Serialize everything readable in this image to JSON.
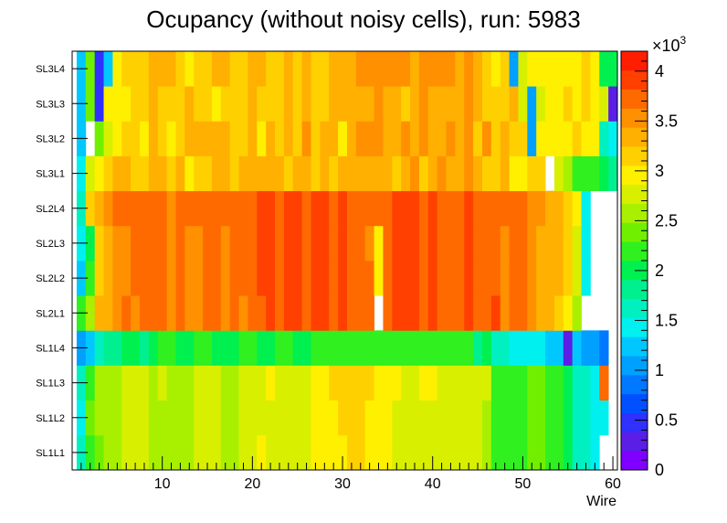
{
  "chart_data": {
    "type": "heatmap",
    "title": "Ocupancy (without noisy cells), run: 5983",
    "xlabel": "Wire",
    "ylabel": "",
    "xlim": [
      0,
      60.5
    ],
    "x_ticks": [
      10,
      20,
      30,
      40,
      50,
      60
    ],
    "y_categories": [
      "SL1L1",
      "SL1L2",
      "SL1L3",
      "SL1L4",
      "SL2L1",
      "SL2L2",
      "SL2L3",
      "SL2L4",
      "SL3L1",
      "SL3L2",
      "SL3L3",
      "SL3L4"
    ],
    "zlim": [
      0,
      4200
    ],
    "z_ticks": [
      0,
      0.5,
      1,
      1.5,
      2,
      2.5,
      3,
      3.5,
      4
    ],
    "z_exponent_label": "×10",
    "z_exponent_power": "3",
    "first_wire": 1,
    "rows": {
      "SL1L1": [
        1600,
        2200,
        2400,
        2500,
        2600,
        2700,
        2800,
        2700,
        2600,
        2650,
        2550,
        2500,
        2600,
        2700,
        2800,
        2700,
        2600,
        2650,
        2700,
        2800,
        2900,
        2850,
        2800,
        2750,
        2700,
        2800,
        2900,
        2900,
        2950,
        3000,
        3100,
        3100,
        3050,
        3000,
        2900,
        2850,
        2800,
        2800,
        2850,
        2850,
        2800,
        2800,
        2750,
        2750,
        2700,
        2650,
        2200,
        2200,
        2200,
        2200,
        2300,
        2300,
        2250,
        2100,
        2000,
        1700,
        1600,
        1500,
        0,
        null
      ],
      "SL1L2": [
        1500,
        2300,
        2500,
        2500,
        2600,
        2700,
        2800,
        2750,
        2600,
        2650,
        2550,
        2550,
        2600,
        2700,
        2800,
        2700,
        2650,
        2650,
        2700,
        2800,
        2850,
        2850,
        2800,
        2750,
        2700,
        2800,
        2950,
        2950,
        3000,
        3100,
        3100,
        3100,
        3050,
        3000,
        2900,
        2850,
        2800,
        2800,
        2850,
        2850,
        2800,
        2800,
        2750,
        2750,
        2700,
        2650,
        2200,
        2200,
        2200,
        2200,
        2300,
        2300,
        2250,
        2100,
        2000,
        1700,
        1600,
        1500,
        1500,
        null
      ],
      "SL1L3": [
        1600,
        2250,
        2500,
        2550,
        2600,
        2700,
        2800,
        2800,
        2650,
        2700,
        2600,
        2550,
        2650,
        2750,
        2850,
        2750,
        2650,
        2650,
        2700,
        2800,
        2850,
        2900,
        2800,
        2750,
        2750,
        2850,
        3000,
        3000,
        3100,
        3200,
        3200,
        3150,
        3100,
        3050,
        2950,
        2900,
        2850,
        2850,
        2900,
        2900,
        2850,
        2850,
        2800,
        2800,
        2750,
        2700,
        2250,
        2250,
        2200,
        2200,
        2300,
        2300,
        2250,
        2100,
        2000,
        1700,
        1600,
        1500,
        3800,
        null
      ],
      "SL1L4": [
        1000,
        1300,
        1700,
        1800,
        1900,
        2000,
        2000,
        1900,
        2000,
        2100,
        2100,
        2000,
        2000,
        2100,
        2100,
        2000,
        2000,
        2000,
        2100,
        2100,
        2000,
        2000,
        2100,
        2100,
        2000,
        2000,
        2100,
        2100,
        2100,
        2100,
        2150,
        2150,
        2150,
        2200,
        2200,
        2200,
        2100,
        2200,
        2150,
        2200,
        2200,
        2200,
        2100,
        2100,
        1900,
        2000,
        1700,
        1650,
        1500,
        1500,
        1400,
        1400,
        1300,
        1200,
        300,
        1200,
        1100,
        1100,
        800,
        null
      ],
      "SL2L1": [
        2200,
        2500,
        3300,
        3300,
        3500,
        3700,
        3500,
        3700,
        3700,
        3800,
        3500,
        3800,
        3600,
        3500,
        3800,
        3800,
        3600,
        3800,
        3600,
        3800,
        3800,
        3900,
        3700,
        3900,
        3900,
        3700,
        3900,
        3900,
        3800,
        3900,
        3800,
        3700,
        3800,
        0,
        3800,
        3900,
        3900,
        3900,
        3700,
        3900,
        3800,
        3700,
        3800,
        3900,
        3700,
        3800,
        4000,
        3500,
        3800,
        3700,
        3500,
        3300,
        3300,
        3100,
        2900,
        2600,
        0,
        null,
        null,
        null
      ],
      "SL2L2": [
        1200,
        2100,
        3100,
        3300,
        3500,
        3600,
        3700,
        3700,
        3700,
        3700,
        3600,
        3800,
        3600,
        3600,
        3800,
        3800,
        3600,
        3800,
        3700,
        3800,
        3900,
        3900,
        3700,
        3900,
        3900,
        3700,
        3900,
        3900,
        3800,
        3900,
        3800,
        3700,
        3800,
        3000,
        3800,
        3900,
        3900,
        3900,
        3700,
        3900,
        3800,
        3700,
        3800,
        3900,
        3800,
        3800,
        3800,
        3600,
        3800,
        3700,
        3600,
        3400,
        3400,
        3300,
        3200,
        2700,
        1500,
        null,
        null,
        null
      ],
      "SL2L3": [
        1400,
        2000,
        3100,
        3300,
        3500,
        3600,
        3700,
        3700,
        3700,
        3700,
        3600,
        3800,
        3600,
        3600,
        3800,
        3800,
        3600,
        3800,
        3700,
        3800,
        3900,
        3900,
        3700,
        3900,
        3900,
        3700,
        3900,
        3900,
        3800,
        3900,
        3800,
        3700,
        3500,
        3000,
        3800,
        3900,
        3900,
        3900,
        3700,
        3900,
        3800,
        3700,
        3800,
        3900,
        3800,
        3800,
        3800,
        3600,
        3800,
        3700,
        3600,
        3400,
        3400,
        3300,
        3200,
        2700,
        1500,
        null,
        null,
        null
      ],
      "SL2L4": [
        1700,
        3100,
        3300,
        3500,
        3700,
        3800,
        3800,
        3800,
        3800,
        3800,
        3600,
        3800,
        3700,
        3700,
        3800,
        3800,
        3700,
        3800,
        3700,
        3800,
        3900,
        3900,
        3800,
        3900,
        3900,
        3800,
        3900,
        3900,
        3800,
        3900,
        3800,
        3800,
        3800,
        3800,
        3800,
        3900,
        3900,
        3900,
        3800,
        3900,
        3800,
        3800,
        3800,
        3900,
        3800,
        3800,
        3800,
        3800,
        3800,
        3700,
        3600,
        3500,
        3400,
        3300,
        3100,
        2900,
        1400,
        null,
        null,
        null
      ],
      "SL3L1": [
        1400,
        2700,
        3000,
        3100,
        3300,
        3300,
        3200,
        3100,
        3300,
        3300,
        3200,
        3400,
        3000,
        3100,
        3200,
        3300,
        3400,
        3200,
        3300,
        3400,
        3300,
        3400,
        3300,
        3200,
        3300,
        3400,
        3200,
        3300,
        3100,
        3300,
        3400,
        3400,
        3400,
        3300,
        3300,
        3200,
        3400,
        3500,
        3200,
        3400,
        3500,
        3300,
        3300,
        3500,
        3300,
        3200,
        3200,
        3300,
        3000,
        3000,
        3200,
        3200,
        0,
        2800,
        2500,
        2200,
        2200,
        2100,
        2000,
        1900
      ],
      "SL3L2": [
        1300,
        0,
        2300,
        2700,
        3000,
        3200,
        3100,
        3000,
        3300,
        3200,
        3000,
        3200,
        3300,
        3300,
        3400,
        3400,
        3300,
        3100,
        3200,
        3300,
        3000,
        3300,
        3100,
        3400,
        3200,
        3500,
        3100,
        3400,
        3300,
        3000,
        3400,
        3500,
        3500,
        3500,
        3300,
        3400,
        3500,
        3300,
        3500,
        3400,
        3300,
        3500,
        3300,
        3500,
        3200,
        3500,
        3100,
        3300,
        3100,
        3100,
        1000,
        3000,
        3000,
        2900,
        3000,
        3100,
        3000,
        2900,
        1700,
        1400
      ],
      "SL3L3": [
        1300,
        2400,
        400,
        2900,
        3000,
        3000,
        3100,
        3200,
        3300,
        3100,
        3200,
        3200,
        3300,
        3100,
        3200,
        3000,
        3100,
        3200,
        3200,
        3300,
        3100,
        3200,
        3100,
        3400,
        3100,
        3300,
        3200,
        3200,
        3300,
        3300,
        3300,
        3300,
        3400,
        3500,
        3400,
        3300,
        3200,
        3400,
        3500,
        3400,
        3300,
        3400,
        3300,
        3500,
        3300,
        3200,
        3200,
        3100,
        3300,
        2800,
        1100,
        2700,
        3000,
        3000,
        3100,
        3000,
        3100,
        3000,
        2800,
        300
      ],
      "SL3L4": [
        1300,
        2300,
        400,
        1300,
        3000,
        3100,
        3100,
        3100,
        3300,
        3300,
        3400,
        3100,
        3000,
        3100,
        3200,
        3300,
        3400,
        3100,
        3200,
        3300,
        3300,
        3200,
        3100,
        3300,
        3100,
        3400,
        3200,
        3100,
        3300,
        3300,
        3300,
        3500,
        3500,
        3500,
        3500,
        3500,
        3500,
        3300,
        3500,
        3500,
        3500,
        3500,
        3300,
        3500,
        3300,
        3200,
        3000,
        3100,
        1000,
        2700,
        2900,
        3000,
        3000,
        3000,
        3000,
        3000,
        3100,
        3000,
        2000,
        2000
      ]
    }
  }
}
